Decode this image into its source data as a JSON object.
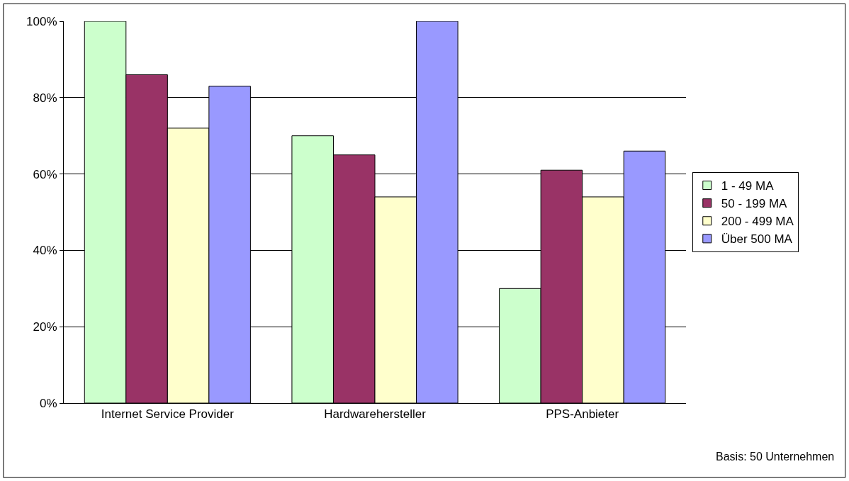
{
  "chart_data": {
    "type": "bar",
    "categories": [
      "Internet Service Provider",
      "Hardwarehersteller",
      "PPS-Anbieter"
    ],
    "series": [
      {
        "name": "1 - 49 MA",
        "color": "#ccffcc",
        "values": [
          100,
          70,
          30
        ]
      },
      {
        "name": "50 - 199 MA",
        "color": "#993366",
        "values": [
          86,
          65,
          61
        ]
      },
      {
        "name": "200 - 499 MA",
        "color": "#ffffcc",
        "values": [
          72,
          54,
          54
        ]
      },
      {
        "name": "Über 500 MA",
        "color": "#9999ff",
        "values": [
          83,
          100,
          66
        ]
      }
    ],
    "ylim": [
      0,
      100
    ],
    "yticks": [
      {
        "value": 0,
        "label": "0%"
      },
      {
        "value": 20,
        "label": "20%"
      },
      {
        "value": 40,
        "label": "40%"
      },
      {
        "value": 60,
        "label": "60%"
      },
      {
        "value": 80,
        "label": "80%"
      },
      {
        "value": 100,
        "label": "100%"
      }
    ],
    "grid": "y",
    "legend": "right",
    "annotations": [
      "Basis: 50 Unternehmen"
    ]
  }
}
